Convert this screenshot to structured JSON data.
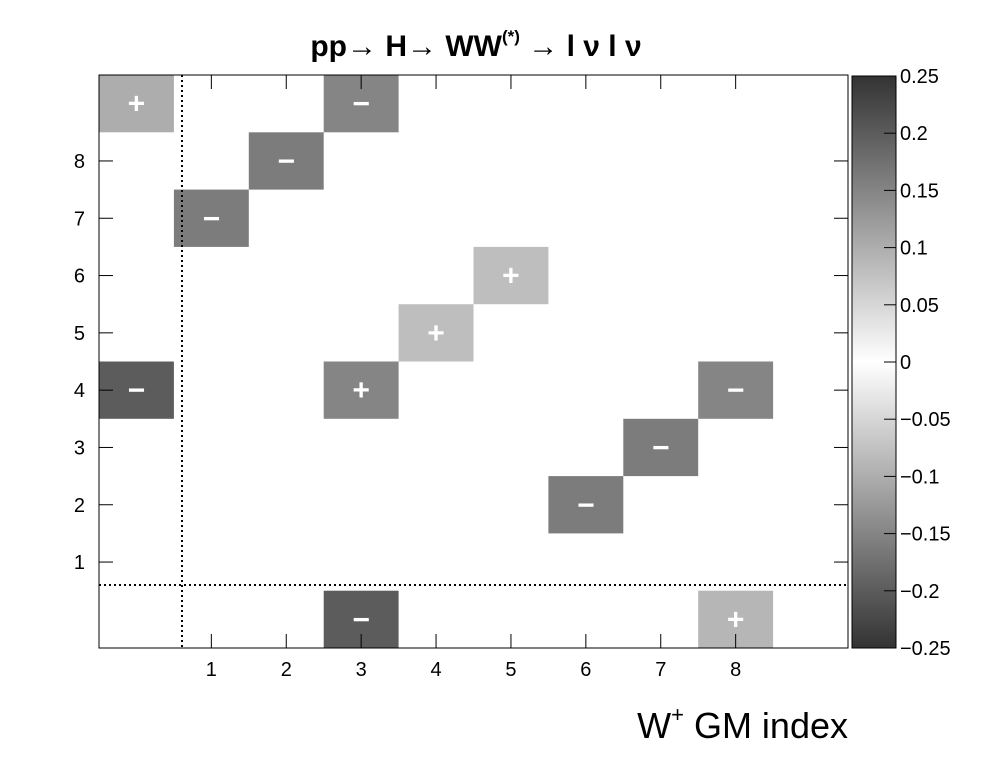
{
  "chart_data": {
    "type": "heatmap",
    "title": {
      "part1": "pp",
      "arrow1": "→",
      "part2": " H",
      "arrow2": "→",
      "part3": " WW",
      "sup": "(*)",
      "arrow3": " →",
      "part4": " l ν l ν"
    },
    "xlabel": {
      "base": "W",
      "sup": "+",
      "rest": " GM index"
    },
    "ylabel": "",
    "x_tick_labels": [
      "1",
      "2",
      "3",
      "4",
      "5",
      "6",
      "7",
      "8"
    ],
    "y_tick_labels": [
      "1",
      "2",
      "3",
      "4",
      "5",
      "6",
      "7",
      "8"
    ],
    "x_range": [
      -1,
      8
    ],
    "y_range": [
      -1,
      8
    ],
    "zlim": [
      -0.25,
      0.25
    ],
    "colorbar_ticks": [
      "0.25",
      "0.2",
      "0.15",
      "0.1",
      "0.05",
      "0",
      "−0.05",
      "−0.1",
      "−0.15",
      "−0.2",
      "−0.25"
    ],
    "colorbar_tick_values": [
      0.25,
      0.2,
      0.15,
      0.1,
      0.05,
      0,
      -0.05,
      -0.1,
      -0.15,
      -0.2,
      -0.25
    ],
    "colormap": "abs-value grayscale (white at 0, dark at ±0.25)",
    "divider_style": "dotted",
    "cells": [
      {
        "x": -1,
        "y": 8,
        "value": 0.1,
        "sign": "+"
      },
      {
        "x": 2,
        "y": 8,
        "value": -0.15,
        "sign": "−"
      },
      {
        "x": 1,
        "y": 7,
        "value": -0.16,
        "sign": "−"
      },
      {
        "x": 0,
        "y": 6,
        "value": -0.16,
        "sign": "−"
      },
      {
        "x": 4,
        "y": 5,
        "value": 0.08,
        "sign": "+"
      },
      {
        "x": 3,
        "y": 4,
        "value": 0.08,
        "sign": "+"
      },
      {
        "x": -1,
        "y": 3,
        "value": -0.2,
        "sign": "−"
      },
      {
        "x": 2,
        "y": 3,
        "value": 0.15,
        "sign": "+"
      },
      {
        "x": 7,
        "y": 3,
        "value": -0.15,
        "sign": "−"
      },
      {
        "x": 6,
        "y": 2,
        "value": -0.16,
        "sign": "−"
      },
      {
        "x": 5,
        "y": 1,
        "value": -0.16,
        "sign": "−"
      },
      {
        "x": 2,
        "y": -1,
        "value": -0.2,
        "sign": "−"
      },
      {
        "x": 7,
        "y": -1,
        "value": 0.09,
        "sign": "+"
      }
    ]
  }
}
